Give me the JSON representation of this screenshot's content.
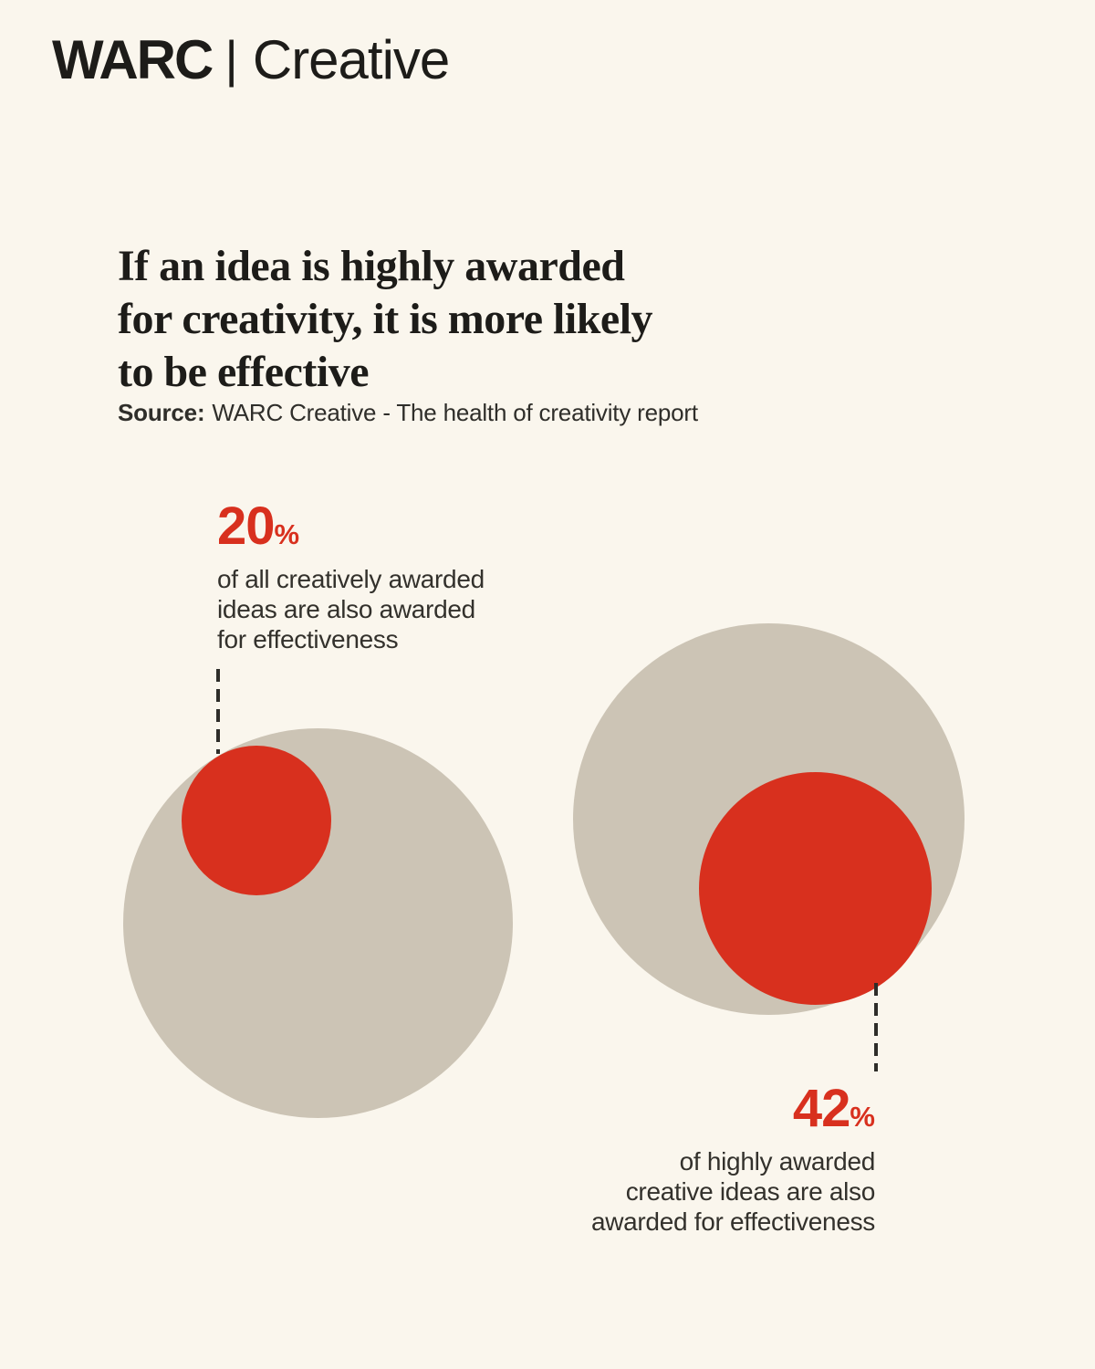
{
  "page": {
    "background": "#FAF6ED"
  },
  "logo": {
    "brand": "WARC",
    "divider": "|",
    "product": "Creative"
  },
  "headline": "If an idea is highly awarded\nfor creativity, it is more likely\nto be effective",
  "source": {
    "label": "Source:",
    "text": "WARC Creative - The health of creativity report"
  },
  "chart_data": {
    "type": "proportional-circle-comparison",
    "title": "If an idea is highly awarded for creativity, it is more likely to be effective",
    "source": "WARC Creative - The health of creativity report",
    "series": [
      {
        "group": "all creatively awarded ideas",
        "value": 20,
        "value_label": "20",
        "unit": "%",
        "caption": "of all creatively awarded\nideas are also awarded\nfor effectiveness"
      },
      {
        "group": "highly awarded creative ideas",
        "value": 42,
        "value_label": "42",
        "unit": "%",
        "caption": "of highly awarded\ncreative ideas are also\nawarded for effectiveness"
      }
    ],
    "legend_position": "none",
    "colors": {
      "background": "#FAF6ED",
      "outer_circle": "#CCC4B5",
      "inner_circle": "#D8301E",
      "value_text": "#D8301E",
      "caption_text": "#33312C",
      "heading_text": "#1D1C19"
    }
  }
}
